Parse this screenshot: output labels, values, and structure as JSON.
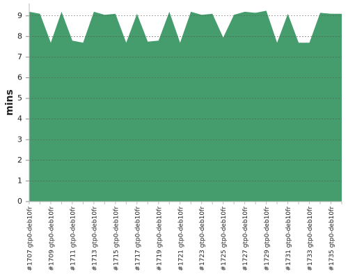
{
  "chart_data": {
    "type": "area",
    "y_label": "mins",
    "categories": [
      "#1707 gtp0-deb10fr",
      null,
      "#1709 gtp0-deb10fr",
      null,
      "#1711 gtp0-deb10fr",
      null,
      "#1713 gtp0-deb10fr",
      null,
      "#1715 gtp0-deb10fr",
      null,
      "#1717 gtp0-deb10fr",
      null,
      "#1719 gtp0-deb10fr",
      null,
      "#1721 gtp0-deb10fr",
      null,
      "#1723 gtp0-deb10fr",
      null,
      "#1725 gtp0-deb10fr",
      null,
      "#1727 gtp0-deb10fr",
      null,
      "#1729 gtp0-deb10fr",
      null,
      "#1731 gtp0-deb10fr",
      null,
      "#1733 gtp0-deb10fr",
      null,
      "#1735 gtp0-deb10fr",
      null
    ],
    "values": [
      9.2,
      9.1,
      7.7,
      9.2,
      7.8,
      7.7,
      9.2,
      9.05,
      9.1,
      7.7,
      9.1,
      7.75,
      7.8,
      9.2,
      7.7,
      9.2,
      9.05,
      9.1,
      7.95,
      9.05,
      9.2,
      9.15,
      9.25,
      7.7,
      9.1,
      7.7,
      7.7,
      9.15,
      9.1,
      9.1
    ],
    "color": "#459c6c",
    "ylim": [
      0,
      9.6
    ],
    "yticks": [
      0,
      1,
      2,
      3,
      4,
      5,
      6,
      7,
      8,
      9
    ],
    "grid": true
  }
}
